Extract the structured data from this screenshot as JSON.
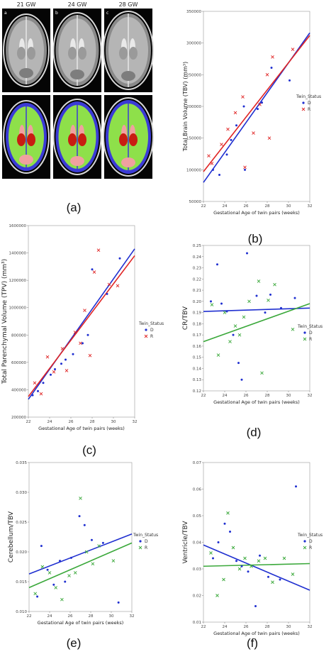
{
  "figure": {
    "panel_labels": [
      "(a)",
      "(b)",
      "(c)",
      "(d)",
      "(e)",
      "(f)"
    ],
    "mri": {
      "column_labels": [
        "21 GW",
        "24 GW",
        "28 GW"
      ],
      "corner_letters": [
        "a",
        "b",
        "c"
      ],
      "colors": {
        "background": "#050505",
        "tissue_outer": "#8a8a8a",
        "tissue_inner": "#b5b5b5",
        "cortex": "#3b3bd6",
        "white_matter": "#8ee04a",
        "deep_gm": "#c81d12",
        "ventricle": "#f0a0a0",
        "csf": "#e9e9e9"
      }
    }
  },
  "colors": {
    "D": "#1f2fd0",
    "R": "#e02424",
    "R_green": "#3aa83a"
  },
  "chart_data": [
    {
      "type": "scatter",
      "panel": "b",
      "ylabel": "Total Brain Volume (TBV) (mm³)",
      "xlabel": "Gestational Age of twin pairs (weeks)",
      "xlim": [
        22,
        32
      ],
      "ylim": [
        50000,
        350000
      ],
      "xticks": [
        22,
        24,
        26,
        28,
        30,
        32
      ],
      "yticks": [
        50000,
        100000,
        150000,
        200000,
        250000,
        300000,
        350000
      ],
      "ytick_labels": [
        "50000",
        "100000",
        "150000",
        "200000",
        "250000",
        "300000",
        "350000"
      ],
      "legend_title": "Twin_Status",
      "legend_position": "right",
      "series": [
        {
          "name": "D",
          "marker": "dot",
          "color": "#1f2fd0",
          "x": [
            22.9,
            23.5,
            24.2,
            24.6,
            25.1,
            25.8,
            25.9,
            27.1,
            27.5,
            28.4,
            30.1
          ],
          "y": [
            100000,
            92000,
            124000,
            147000,
            170000,
            200000,
            100000,
            196000,
            206000,
            261000,
            241000
          ],
          "fit": [
            [
              22,
              80000
            ],
            [
              32,
              316000
            ]
          ]
        },
        {
          "name": "R",
          "marker": "x",
          "color": "#e02424",
          "x": [
            22.5,
            22.8,
            23.7,
            24.3,
            25.0,
            25.7,
            25.9,
            26.7,
            27.3,
            28.0,
            28.2,
            28.5,
            30.4
          ],
          "y": [
            122000,
            110000,
            140000,
            164000,
            190000,
            215000,
            104000,
            158000,
            203000,
            250000,
            150000,
            278000,
            290000
          ],
          "fit": [
            [
              22,
              97000
            ],
            [
              32,
              312000
            ]
          ]
        }
      ]
    },
    {
      "type": "scatter",
      "panel": "c",
      "ylabel": "Total Parenchymal Volume (TPV) (mm³)",
      "xlabel": "Gestational Age of twin pairs (weeks)",
      "xlim": [
        22,
        32
      ],
      "ylim": [
        200000,
        1600000
      ],
      "xticks": [
        22,
        24,
        26,
        28,
        30,
        32
      ],
      "yticks": [
        200000,
        400000,
        600000,
        800000,
        1000000,
        1200000,
        1400000,
        1600000
      ],
      "ytick_labels": [
        "200000",
        "400000",
        "600000",
        "800000",
        "1000000",
        "1200000",
        "1400000",
        "1600000"
      ],
      "legend_title": "Twin_Status",
      "legend_position": "right",
      "series": [
        {
          "name": "D",
          "marker": "dot",
          "color": "#1f2fd0",
          "x": [
            22.4,
            22.9,
            23.4,
            24.1,
            24.5,
            25.1,
            25.5,
            26.2,
            27.1,
            27.6,
            28.0,
            29.4,
            30.6
          ],
          "y": [
            360000,
            390000,
            450000,
            510000,
            550000,
            590000,
            620000,
            660000,
            740000,
            800000,
            1280000,
            1100000,
            1360000
          ],
          "fit": [
            [
              22,
              330000
            ],
            [
              32,
              1430000
            ]
          ]
        },
        {
          "name": "R",
          "marker": "x",
          "color": "#e02424",
          "x": [
            22.6,
            23.2,
            23.8,
            24.4,
            25.2,
            25.6,
            26.4,
            26.9,
            27.3,
            27.8,
            28.2,
            28.6,
            29.6,
            30.4
          ],
          "y": [
            450000,
            370000,
            640000,
            530000,
            700000,
            540000,
            820000,
            740000,
            980000,
            650000,
            1260000,
            1420000,
            1170000,
            1160000
          ],
          "fit": [
            [
              22,
              350000
            ],
            [
              32,
              1380000
            ]
          ]
        }
      ]
    },
    {
      "type": "scatter",
      "panel": "d",
      "ylabel": "CR/TBV",
      "xlabel": "Gestational Age of twin pairs (weeks)",
      "xlim": [
        22,
        32
      ],
      "ylim": [
        0.12,
        0.25
      ],
      "xticks": [
        22,
        24,
        26,
        28,
        30,
        32
      ],
      "yticks": [
        0.12,
        0.13,
        0.14,
        0.15,
        0.16,
        0.17,
        0.18,
        0.19,
        0.2,
        0.21,
        0.22,
        0.23,
        0.24,
        0.25
      ],
      "ytick_labels": [
        "0.12",
        "0.13",
        "0.14",
        "0.15",
        "0.16",
        "0.17",
        "0.18",
        "0.19",
        "0.20",
        "0.21",
        "0.22",
        "0.23",
        "0.24",
        "0.25"
      ],
      "legend_title": "Twin_Status",
      "legend_position": "right",
      "series": [
        {
          "name": "D",
          "marker": "dot",
          "color": "#1f2fd0",
          "x": [
            22.7,
            23.3,
            23.7,
            24.2,
            24.8,
            25.3,
            25.6,
            26.1,
            27.0,
            27.8,
            28.3,
            29.3,
            30.6
          ],
          "y": [
            0.2,
            0.233,
            0.198,
            0.191,
            0.17,
            0.145,
            0.13,
            0.243,
            0.205,
            0.19,
            0.206,
            0.194,
            0.203
          ],
          "fit": [
            [
              22,
              0.191
            ],
            [
              32,
              0.194
            ]
          ]
        },
        {
          "name": "R",
          "marker": "x",
          "color": "#3aa83a",
          "x": [
            22.8,
            23.4,
            24.0,
            24.5,
            25.0,
            25.4,
            25.8,
            26.3,
            27.2,
            27.5,
            28.1,
            28.7,
            30.4
          ],
          "y": [
            0.197,
            0.152,
            0.19,
            0.164,
            0.178,
            0.17,
            0.186,
            0.2,
            0.218,
            0.136,
            0.201,
            0.215,
            0.175
          ],
          "fit": [
            [
              22,
              0.164
            ],
            [
              32,
              0.198
            ]
          ]
        }
      ]
    },
    {
      "type": "scatter",
      "panel": "e",
      "ylabel": "Cerebellum/TBV",
      "xlabel": "Gestational Age of twin pairs (weeks)",
      "xlim": [
        22,
        32
      ],
      "ylim": [
        0.01,
        0.035
      ],
      "xticks": [
        22,
        24,
        26,
        28,
        30,
        32
      ],
      "yticks": [
        0.01,
        0.015,
        0.02,
        0.025,
        0.03,
        0.035
      ],
      "ytick_labels": [
        "0.010",
        "0.015",
        "0.020",
        "0.025",
        "0.030",
        "0.035"
      ],
      "legend_title": "Twin_Status",
      "legend_position": "right",
      "series": [
        {
          "name": "D",
          "marker": "dot",
          "color": "#1f2fd0",
          "x": [
            22.8,
            23.2,
            23.8,
            24.4,
            25.0,
            25.5,
            26.1,
            26.9,
            27.4,
            28.1,
            29.2,
            30.7
          ],
          "y": [
            0.0125,
            0.021,
            0.017,
            0.0145,
            0.0185,
            0.015,
            0.019,
            0.026,
            0.0245,
            0.022,
            0.0215,
            0.0115
          ],
          "fit": [
            [
              22,
              0.0163
            ],
            [
              32,
              0.023
            ]
          ]
        },
        {
          "name": "R",
          "marker": "x",
          "color": "#3aa83a",
          "x": [
            22.6,
            23.3,
            24.0,
            24.6,
            25.2,
            25.9,
            26.5,
            27.0,
            27.6,
            28.2,
            28.8,
            30.2
          ],
          "y": [
            0.013,
            0.0175,
            0.0165,
            0.014,
            0.012,
            0.016,
            0.0165,
            0.029,
            0.02,
            0.018,
            0.021,
            0.0185
          ],
          "fit": [
            [
              22,
              0.014
            ],
            [
              32,
              0.0215
            ]
          ]
        }
      ]
    },
    {
      "type": "scatter",
      "panel": "f",
      "ylabel": "Ventricle/TBV",
      "xlabel": "Gestational Age of twin pairs (weeks)",
      "xlim": [
        22,
        32
      ],
      "ylim": [
        0.01,
        0.07
      ],
      "xticks": [
        22,
        24,
        26,
        28,
        30,
        32
      ],
      "yticks": [
        0.01,
        0.02,
        0.03,
        0.04,
        0.05,
        0.06,
        0.07
      ],
      "ytick_labels": [
        "0.01",
        "0.02",
        "0.03",
        "0.04",
        "0.05",
        "0.06",
        "0.07"
      ],
      "legend_title": "Twin_Status",
      "legend_position": "right",
      "series": [
        {
          "name": "D",
          "marker": "dot",
          "color": "#1f2fd0",
          "x": [
            22.9,
            23.4,
            24.0,
            24.5,
            25.1,
            25.6,
            26.2,
            26.9,
            27.3,
            28.1,
            29.2,
            30.7
          ],
          "y": [
            0.034,
            0.04,
            0.047,
            0.044,
            0.033,
            0.031,
            0.029,
            0.016,
            0.035,
            0.027,
            0.026,
            0.061
          ],
          "fit": [
            [
              22,
              0.039
            ],
            [
              32,
              0.022
            ]
          ]
        },
        {
          "name": "R",
          "marker": "x",
          "color": "#3aa83a",
          "x": [
            22.7,
            23.3,
            23.9,
            24.3,
            24.8,
            25.4,
            25.9,
            26.5,
            27.2,
            27.8,
            28.5,
            29.6,
            30.4
          ],
          "y": [
            0.036,
            0.02,
            0.026,
            0.051,
            0.038,
            0.03,
            0.034,
            0.031,
            0.033,
            0.034,
            0.025,
            0.034,
            0.028
          ],
          "fit": [
            [
              22,
              0.031
            ],
            [
              32,
              0.032
            ]
          ]
        }
      ]
    }
  ]
}
